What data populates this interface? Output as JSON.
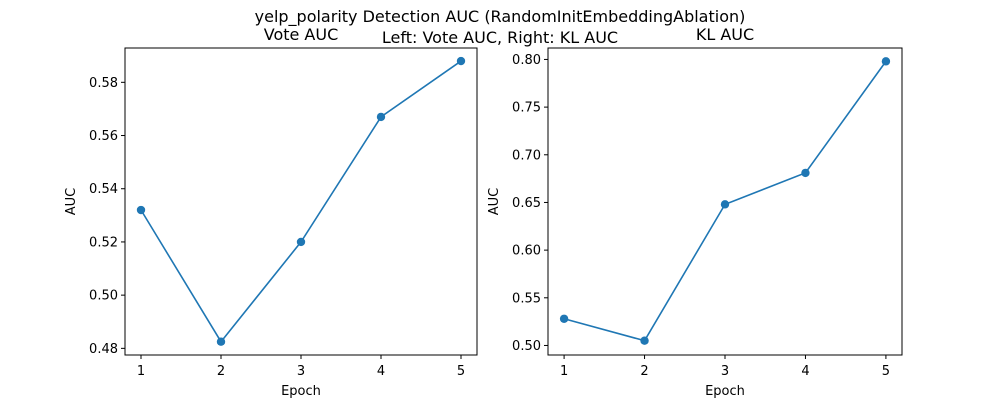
{
  "figure": {
    "title_line1": "yelp_polarity Detection AUC (RandomInitEmbeddingAblation)",
    "title_line2": "Left: Vote AUC, Right: KL AUC"
  },
  "chart_data": [
    {
      "type": "line",
      "title": "Vote AUC",
      "xlabel": "Epoch",
      "ylabel": "AUC",
      "x": [
        1,
        2,
        3,
        4,
        5
      ],
      "y": [
        0.532,
        0.4825,
        0.52,
        0.567,
        0.588
      ],
      "xlim": [
        0.8,
        5.2
      ],
      "ylim": [
        0.4775,
        0.5929
      ],
      "xticks": [
        1,
        2,
        3,
        4,
        5
      ],
      "yticks": [
        "0.48",
        "0.50",
        "0.52",
        "0.54",
        "0.56",
        "0.58"
      ],
      "color": "#1f77b4",
      "marker": "circle",
      "grid": false,
      "legend": false
    },
    {
      "type": "line",
      "title": "KL AUC",
      "xlabel": "Epoch",
      "ylabel": "AUC",
      "x": [
        1,
        2,
        3,
        4,
        5
      ],
      "y": [
        0.528,
        0.505,
        0.648,
        0.681,
        0.798
      ],
      "xlim": [
        0.8,
        5.2
      ],
      "ylim": [
        0.49,
        0.812
      ],
      "xticks": [
        1,
        2,
        3,
        4,
        5
      ],
      "yticks": [
        "0.50",
        "0.55",
        "0.60",
        "0.65",
        "0.70",
        "0.75",
        "0.80"
      ],
      "color": "#1f77b4",
      "marker": "circle",
      "grid": false,
      "legend": false
    }
  ]
}
